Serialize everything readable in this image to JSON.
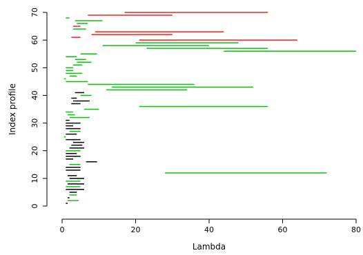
{
  "chart_data": {
    "type": "interval",
    "xlabel": "Lambda",
    "ylabel": "Index profile",
    "xlim": [
      0,
      80
    ],
    "ylim": [
      0,
      70
    ],
    "x_ticks": [
      0,
      20,
      40,
      60,
      80
    ],
    "y_ticks": [
      0,
      10,
      20,
      30,
      40,
      50,
      60,
      70
    ],
    "grid": false,
    "colors": {
      "black": "#000000",
      "green": "#22b422",
      "red": "#ee2222"
    },
    "segments": [
      {
        "index": 1,
        "start": 1.0,
        "end": 1.5,
        "color": "black"
      },
      {
        "index": 2,
        "start": 1.5,
        "end": 4.5,
        "color": "green"
      },
      {
        "index": 3,
        "start": 1.5,
        "end": 2.0,
        "color": "black"
      },
      {
        "index": 4,
        "start": 2.0,
        "end": 4.0,
        "color": "green"
      },
      {
        "index": 5,
        "start": 2.0,
        "end": 4.0,
        "color": "black"
      },
      {
        "index": 6,
        "start": 1.0,
        "end": 6.0,
        "color": "black"
      },
      {
        "index": 7,
        "start": 1.0,
        "end": 5.0,
        "color": "green"
      },
      {
        "index": 8,
        "start": 1.5,
        "end": 6.0,
        "color": "black"
      },
      {
        "index": 9,
        "start": 1.0,
        "end": 5.0,
        "color": "green"
      },
      {
        "index": 10,
        "start": 2.0,
        "end": 6.0,
        "color": "black"
      },
      {
        "index": 11,
        "start": 1.5,
        "end": 4.0,
        "color": "black"
      },
      {
        "index": 12,
        "start": 28.0,
        "end": 72.0,
        "color": "green"
      },
      {
        "index": 13,
        "start": 1.0,
        "end": 5.0,
        "color": "black"
      },
      {
        "index": 14,
        "start": 1.0,
        "end": 5.0,
        "color": "black"
      },
      {
        "index": 15,
        "start": 2.0,
        "end": 5.0,
        "color": "green"
      },
      {
        "index": 16,
        "start": 6.5,
        "end": 9.5,
        "color": "black"
      },
      {
        "index": 17,
        "start": 1.0,
        "end": 3.0,
        "color": "black"
      },
      {
        "index": 18,
        "start": 1.0,
        "end": 5.0,
        "color": "black"
      },
      {
        "index": 19,
        "start": 1.0,
        "end": 4.0,
        "color": "black"
      },
      {
        "index": 20,
        "start": 1.0,
        "end": 5.0,
        "color": "green"
      },
      {
        "index": 21,
        "start": 2.0,
        "end": 6.0,
        "color": "black"
      },
      {
        "index": 22,
        "start": 2.5,
        "end": 5.5,
        "color": "black"
      },
      {
        "index": 23,
        "start": 3.0,
        "end": 6.0,
        "color": "black"
      },
      {
        "index": 24,
        "start": 1.0,
        "end": 5.0,
        "color": "black"
      },
      {
        "index": 25,
        "start": 0.5,
        "end": 1.0,
        "color": "green"
      },
      {
        "index": 26,
        "start": 1.0,
        "end": 4.0,
        "color": "black"
      },
      {
        "index": 27,
        "start": 2.0,
        "end": 5.0,
        "color": "green"
      },
      {
        "index": 28,
        "start": 1.0,
        "end": 5.0,
        "color": "black"
      },
      {
        "index": 29,
        "start": 1.0,
        "end": 3.0,
        "color": "black"
      },
      {
        "index": 30,
        "start": 1.0,
        "end": 5.0,
        "color": "black"
      },
      {
        "index": 31,
        "start": 1.0,
        "end": 2.0,
        "color": "black"
      },
      {
        "index": 32,
        "start": 2.0,
        "end": 7.5,
        "color": "green"
      },
      {
        "index": 33,
        "start": 1.5,
        "end": 3.5,
        "color": "green"
      },
      {
        "index": 34,
        "start": 1.0,
        "end": 3.0,
        "color": "green"
      },
      {
        "index": 35,
        "start": 6.0,
        "end": 10.0,
        "color": "green"
      },
      {
        "index": 36,
        "start": 21.0,
        "end": 56.0,
        "color": "green"
      },
      {
        "index": 37,
        "start": 2.5,
        "end": 5.0,
        "color": "black"
      },
      {
        "index": 38,
        "start": 3.0,
        "end": 7.5,
        "color": "black"
      },
      {
        "index": 39,
        "start": 2.5,
        "end": 4.0,
        "color": "black"
      },
      {
        "index": 40,
        "start": 5.0,
        "end": 8.0,
        "color": "green"
      },
      {
        "index": 41,
        "start": 3.5,
        "end": 6.0,
        "color": "black"
      },
      {
        "index": 42,
        "start": 12.0,
        "end": 34.0,
        "color": "green"
      },
      {
        "index": 43,
        "start": 13.5,
        "end": 52.0,
        "color": "green"
      },
      {
        "index": 44,
        "start": 7.0,
        "end": 36.0,
        "color": "green"
      },
      {
        "index": 45,
        "start": 1.0,
        "end": 7.0,
        "color": "green"
      },
      {
        "index": 46,
        "start": 0.5,
        "end": 1.0,
        "color": "green"
      },
      {
        "index": 47,
        "start": 2.0,
        "end": 4.0,
        "color": "green"
      },
      {
        "index": 48,
        "start": 1.0,
        "end": 5.5,
        "color": "green"
      },
      {
        "index": 49,
        "start": 1.0,
        "end": 3.0,
        "color": "green"
      },
      {
        "index": 50,
        "start": 1.0,
        "end": 3.0,
        "color": "green"
      },
      {
        "index": 51,
        "start": 3.0,
        "end": 5.5,
        "color": "green"
      },
      {
        "index": 52,
        "start": 4.0,
        "end": 8.0,
        "color": "green"
      },
      {
        "index": 53,
        "start": 3.5,
        "end": 6.5,
        "color": "green"
      },
      {
        "index": 54,
        "start": 1.0,
        "end": 4.0,
        "color": "green"
      },
      {
        "index": 55,
        "start": 5.0,
        "end": 9.5,
        "color": "green"
      },
      {
        "index": 56,
        "start": 44.0,
        "end": 80.0,
        "color": "green"
      },
      {
        "index": 57,
        "start": 23.0,
        "end": 56.0,
        "color": "green"
      },
      {
        "index": 58,
        "start": 11.0,
        "end": 40.0,
        "color": "green"
      },
      {
        "index": 59,
        "start": 20.0,
        "end": 48.0,
        "color": "green"
      },
      {
        "index": 60,
        "start": 21.0,
        "end": 64.0,
        "color": "red"
      },
      {
        "index": 61,
        "start": 2.5,
        "end": 5.0,
        "color": "red"
      },
      {
        "index": 62,
        "start": 8.0,
        "end": 30.0,
        "color": "red"
      },
      {
        "index": 63,
        "start": 9.0,
        "end": 44.0,
        "color": "red"
      },
      {
        "index": 64,
        "start": 3.0,
        "end": 6.5,
        "color": "green"
      },
      {
        "index": 65,
        "start": 3.0,
        "end": 5.0,
        "color": "red"
      },
      {
        "index": 66,
        "start": 4.0,
        "end": 7.0,
        "color": "green"
      },
      {
        "index": 67,
        "start": 3.5,
        "end": 11.0,
        "color": "green"
      },
      {
        "index": 68,
        "start": 1.0,
        "end": 2.0,
        "color": "green"
      },
      {
        "index": 69,
        "start": 7.0,
        "end": 30.0,
        "color": "red"
      },
      {
        "index": 70,
        "start": 17.0,
        "end": 56.0,
        "color": "red"
      }
    ]
  }
}
